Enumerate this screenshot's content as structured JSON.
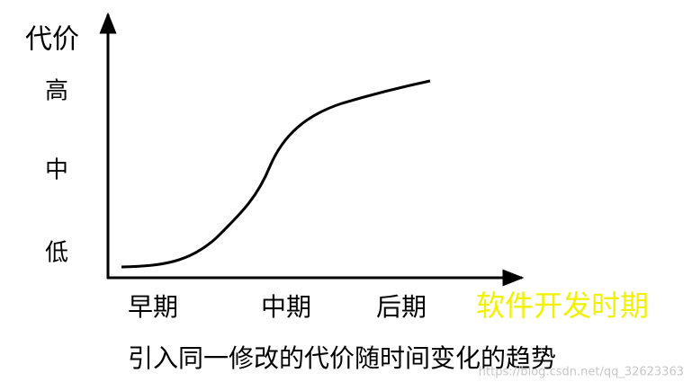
{
  "y_axis": {
    "title": "代价",
    "levels": [
      "高",
      "中",
      "低"
    ]
  },
  "x_axis": {
    "stages": [
      "早期",
      "中期",
      "后期"
    ],
    "title": "软件开发时期"
  },
  "caption": "引入同一修改的代价随时间变化的趋势",
  "watermark": "https://blog.csdn.net/qq_32623363"
}
